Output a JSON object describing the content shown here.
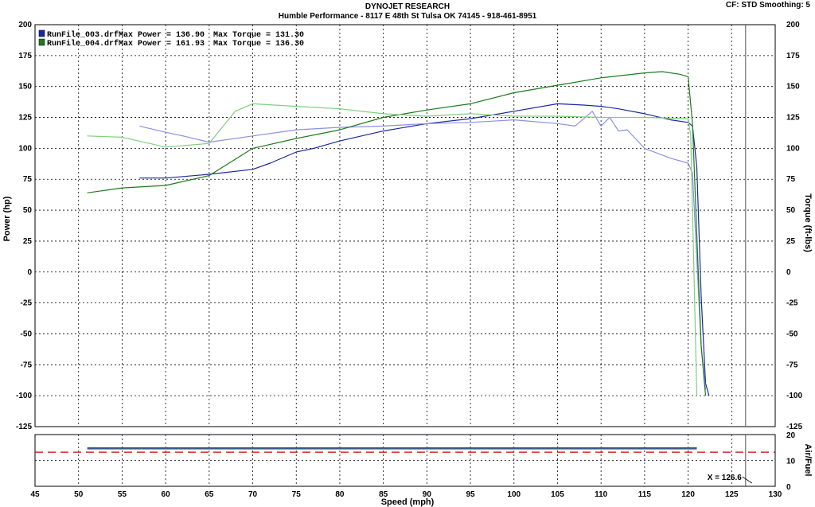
{
  "header": {
    "title": "DYNOJET RESEARCH",
    "subtitle": "Humble Performance - 8117 E 48th St Tulsa OK 74145 - 918-461-8951",
    "settings": "CF: STD  Smoothing: 5"
  },
  "colors": {
    "run003": "#1a2a9c",
    "run003_light": "#8a90e0",
    "run004": "#1e7a1e",
    "run004_light": "#7fcf7f",
    "afr_target": "#cc0000",
    "grid": "#000000"
  },
  "chart_data": [
    {
      "type": "line",
      "xlabel": "Speed (mph)",
      "ylabel": "Power (hp)",
      "y2label": "Torque (ft-lbs)",
      "xlim": [
        45,
        130
      ],
      "ylim": [
        -125,
        200
      ],
      "y2lim": [
        -125,
        200
      ],
      "xticks": [
        45,
        50,
        55,
        60,
        65,
        70,
        75,
        80,
        85,
        90,
        95,
        100,
        105,
        110,
        115,
        120,
        125,
        130
      ],
      "yticks": [
        200,
        175,
        150,
        125,
        100,
        75,
        50,
        25,
        0,
        -25,
        -50,
        -75,
        -100,
        -125
      ],
      "grid": true,
      "legend_position": "top-left",
      "legend": [
        {
          "swatch": "run003",
          "file": "RunFile_003.drf",
          "power_text": "Max Power = 136.90",
          "torque_text": "Max Torque = 131.30"
        },
        {
          "swatch": "run004",
          "file": "RunFile_004.drf",
          "power_text": "Max Power = 161.93",
          "torque_text": "Max Torque = 136.30"
        }
      ],
      "series": [
        {
          "key": "p003",
          "color": "run003",
          "x": [
            57,
            60,
            65,
            70,
            72,
            75,
            77,
            80,
            85,
            90,
            95,
            100,
            105,
            108,
            110,
            112,
            115,
            118,
            120,
            120.5,
            121,
            121.5,
            122,
            122.4
          ],
          "values": [
            76,
            76,
            79,
            83,
            88,
            97,
            100,
            106,
            114,
            120,
            124,
            130,
            136,
            135,
            134,
            132,
            128,
            123,
            121,
            118,
            85,
            -20,
            -90,
            -100
          ]
        },
        {
          "key": "t003",
          "color": "run003_light",
          "x": [
            57,
            60,
            62,
            65,
            70,
            75,
            80,
            85,
            90,
            95,
            100,
            105,
            107,
            109,
            110,
            111,
            112,
            113,
            115,
            118,
            120,
            120.5,
            121,
            121.5,
            122
          ],
          "values": [
            118,
            113,
            110,
            105,
            110,
            115,
            117,
            118,
            120,
            121,
            123,
            120,
            118,
            130,
            118,
            125,
            114,
            115,
            100,
            92,
            88,
            80,
            10,
            -60,
            -95
          ]
        },
        {
          "key": "p004",
          "color": "run004",
          "x": [
            51,
            55,
            60,
            65,
            70,
            75,
            80,
            85,
            90,
            95,
            100,
            105,
            110,
            115,
            117,
            119,
            120,
            120.5,
            121,
            121.5,
            122
          ],
          "values": [
            64,
            68,
            70,
            78,
            100,
            108,
            115,
            125,
            131,
            136,
            145,
            151,
            157,
            161,
            162,
            160,
            158,
            120,
            30,
            -60,
            -100
          ]
        },
        {
          "key": "t004",
          "color": "run004_light",
          "x": [
            51,
            55,
            60,
            65,
            68,
            70,
            75,
            80,
            85,
            90,
            95,
            100,
            105,
            110,
            115,
            120,
            120.3,
            120.6,
            121
          ],
          "values": [
            110,
            109,
            101,
            104,
            130,
            136,
            134,
            132,
            128,
            126,
            128,
            126,
            126,
            125,
            125,
            124,
            110,
            20,
            -100
          ]
        }
      ],
      "cursor_label": "X = 126.6",
      "cursor_x": 126.6
    },
    {
      "type": "line",
      "ylabel": "Air/Fuel",
      "xlim": [
        45,
        130
      ],
      "ylim": [
        0,
        20
      ],
      "yticks": [
        20,
        10,
        0
      ],
      "afr_target": 13.2,
      "series": [
        {
          "key": "afr003",
          "color": "run003",
          "x": [
            51,
            121
          ],
          "values": [
            14.5,
            14.5
          ]
        },
        {
          "key": "afr004",
          "color": "run004",
          "x": [
            51,
            121
          ],
          "values": [
            14.9,
            14.9
          ]
        }
      ]
    }
  ]
}
